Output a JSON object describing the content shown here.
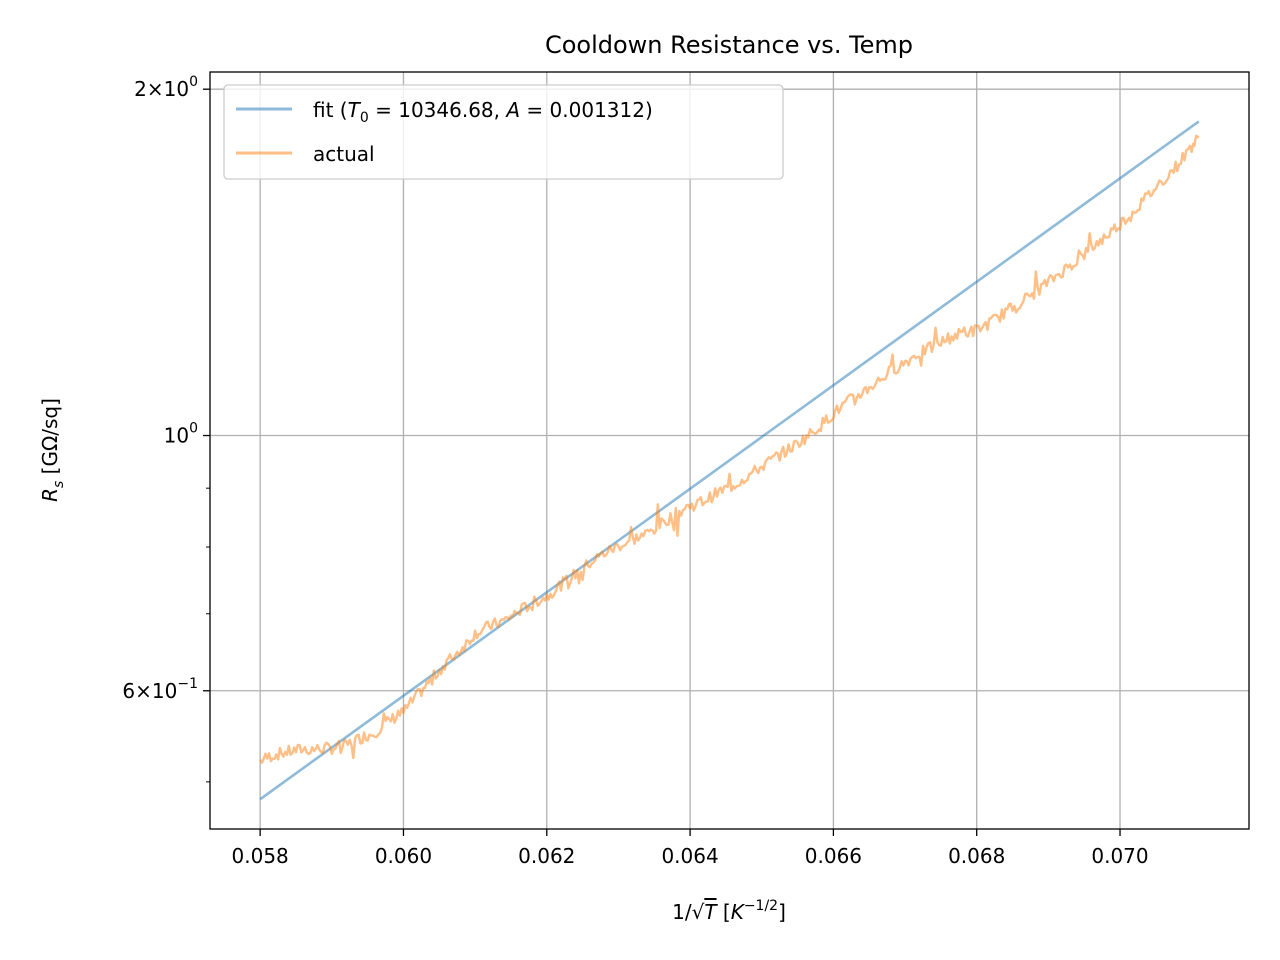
{
  "chart_data": {
    "type": "line",
    "title": "Cooldown Resistance vs. Temp",
    "xlabel": "1/√T [K^(−1/2)]",
    "ylabel": "R_s [GΩ/sq]",
    "xlim": [
      0.0573,
      0.0718
    ],
    "ylim": [
      0.455,
      2.07
    ],
    "yscale": "log",
    "grid": true,
    "legend_position": "top-left",
    "x_ticks": [
      0.058,
      0.06,
      0.062,
      0.064,
      0.066,
      0.068,
      0.07
    ],
    "x_tick_labels": [
      "0.058",
      "0.060",
      "0.062",
      "0.064",
      "0.066",
      "0.068",
      "0.070"
    ],
    "y_major_ticks": [
      {
        "value": 2.0,
        "label_base": "2×10",
        "label_exp": "0"
      },
      {
        "value": 1.0,
        "label_base": "10",
        "label_exp": "0"
      },
      {
        "value": 0.6,
        "label_base": "6×10",
        "label_exp": "−1"
      }
    ],
    "y_minor_ticks": [
      0.5,
      0.7,
      0.8,
      0.9
    ],
    "series": [
      {
        "name": "fit (T₀ = 10346.68, A = 0.001312)",
        "color": "#1f77b4",
        "x": [
          0.058,
          0.0711
        ],
        "y": [
          0.483,
          1.875
        ]
      },
      {
        "name": "actual",
        "color": "#ff7f0e",
        "x": [
          0.058,
          0.0582,
          0.0584,
          0.0586,
          0.0588,
          0.059,
          0.0592,
          0.0594,
          0.0596,
          0.0598,
          0.06,
          0.0602,
          0.0604,
          0.0606,
          0.0608,
          0.061,
          0.0612,
          0.0614,
          0.0616,
          0.0618,
          0.062,
          0.0622,
          0.0624,
          0.0626,
          0.0628,
          0.063,
          0.0632,
          0.0634,
          0.0636,
          0.0638,
          0.064,
          0.0642,
          0.0644,
          0.0646,
          0.0648,
          0.065,
          0.0652,
          0.0654,
          0.0656,
          0.0658,
          0.066,
          0.0662,
          0.0664,
          0.0666,
          0.0668,
          0.067,
          0.0672,
          0.0674,
          0.0676,
          0.0678,
          0.068,
          0.0682,
          0.0684,
          0.0686,
          0.0688,
          0.069,
          0.0692,
          0.0694,
          0.0696,
          0.0698,
          0.07,
          0.0702,
          0.0704,
          0.0706,
          0.0708,
          0.071,
          0.0711
        ],
        "y": [
          0.522,
          0.528,
          0.531,
          0.534,
          0.534,
          0.535,
          0.538,
          0.546,
          0.552,
          0.565,
          0.575,
          0.595,
          0.615,
          0.635,
          0.652,
          0.673,
          0.683,
          0.69,
          0.703,
          0.715,
          0.725,
          0.742,
          0.758,
          0.775,
          0.79,
          0.802,
          0.812,
          0.822,
          0.838,
          0.855,
          0.868,
          0.878,
          0.893,
          0.905,
          0.922,
          0.94,
          0.958,
          0.975,
          0.995,
          1.018,
          1.045,
          1.07,
          1.09,
          1.112,
          1.138,
          1.158,
          1.18,
          1.195,
          1.215,
          1.228,
          1.235,
          1.255,
          1.28,
          1.305,
          1.33,
          1.36,
          1.39,
          1.42,
          1.455,
          1.49,
          1.528,
          1.57,
          1.618,
          1.668,
          1.718,
          1.785,
          1.815
        ]
      }
    ]
  }
}
